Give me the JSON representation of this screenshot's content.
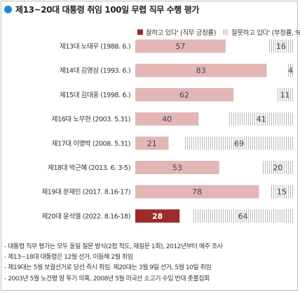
{
  "title": "제13~20대 대통령 취임 100일 무렵 직무 수행 평가",
  "legend": {
    "positive": "잘하고 있다' (직무 긍정률)",
    "negative": "잘못하고 있다' (부정률, %)"
  },
  "colors": {
    "title_dot": "#1e88d8",
    "positive": "#e3b6b6",
    "positive_highlight": "#9e2a2b",
    "negative_hatch": "#b9b9b9"
  },
  "chart_data": {
    "type": "bar",
    "stacked": true,
    "orientation": "horizontal",
    "categories": [
      "제13대 노태우 (1988. 6.)",
      "제14대 김영삼 (1993. 6.)",
      "제15대 김대중 (1998. 6.)",
      "제16대 노무현 (2003. 5.31)",
      "제17대 이명박 (2008. 5.31)",
      "제18대 박근혜 (2013. 6. 3-5)",
      "제19대 문재인 (2017. 8.16-17)",
      "제20대 윤석열 (2022. 8.16-18)"
    ],
    "series": [
      {
        "name": "잘하고 있다' (직무 긍정률)",
        "values": [
          57,
          83,
          62,
          40,
          21,
          53,
          78,
          28
        ]
      },
      {
        "name": "잘못하고 있다' (부정률, %)",
        "values": [
          16,
          4,
          11,
          41,
          69,
          20,
          15,
          64
        ]
      }
    ],
    "xlim": [
      0,
      100
    ],
    "highlight_index": 7
  },
  "notes": [
    "- 대통령 직무 평가는 모두 동일 질문 방식(2점 척도, 재질문 1회), 2012년부터 매주 조사",
    "- 제13~18대 대통령은 12월 선거, 이듬해 2월 취임",
    "- 제19대는 5월 보궐선거로 당선 즉시 취임. 제20대는 3월 9일 선거, 5월 10일 취임",
    "- 2003년 5월 노건평 땅 투기 의혹, 2008년 5월 미국산 소고기 수입 반대 촛불집회"
  ]
}
